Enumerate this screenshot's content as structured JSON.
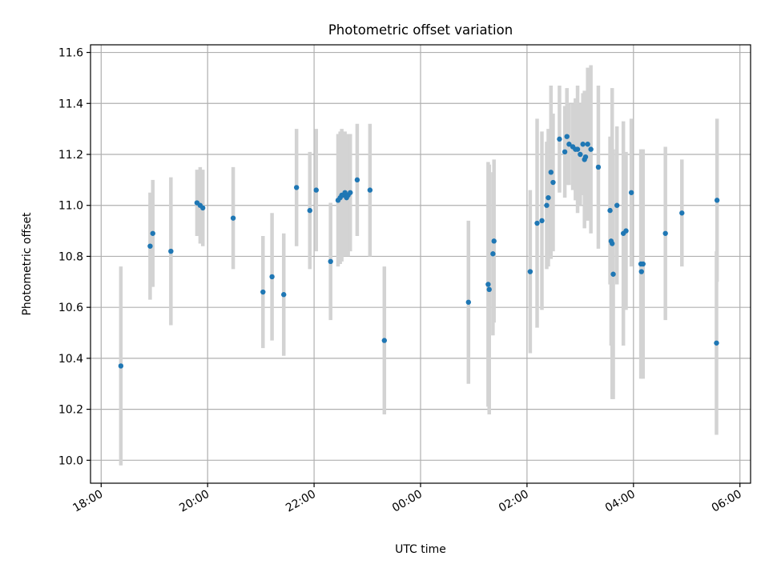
{
  "chart_data": {
    "type": "scatter",
    "title": "Photometric offset variation",
    "xlabel": "UTC time",
    "ylabel": "Photometric offset",
    "x_unit": "hours",
    "xlim": [
      17.8,
      30.2
    ],
    "ylim": [
      9.91,
      11.63
    ],
    "grid": true,
    "x_ticks": [
      {
        "value": 18,
        "label": "18:00"
      },
      {
        "value": 20,
        "label": "20:00"
      },
      {
        "value": 22,
        "label": "22:00"
      },
      {
        "value": 24,
        "label": "00:00"
      },
      {
        "value": 26,
        "label": "02:00"
      },
      {
        "value": 28,
        "label": "04:00"
      },
      {
        "value": 30,
        "label": "06:00"
      }
    ],
    "y_ticks": [
      {
        "value": 10.0,
        "label": "10.0"
      },
      {
        "value": 10.2,
        "label": "10.2"
      },
      {
        "value": 10.4,
        "label": "10.4"
      },
      {
        "value": 10.6,
        "label": "10.6"
      },
      {
        "value": 10.8,
        "label": "10.8"
      },
      {
        "value": 11.0,
        "label": "11.0"
      },
      {
        "value": 11.2,
        "label": "11.2"
      },
      {
        "value": 11.4,
        "label": "11.4"
      },
      {
        "value": 11.6,
        "label": "11.6"
      }
    ],
    "colors": {
      "points": "#1f77b4",
      "errorbars": "#d3d3d3",
      "grid": "#b0b0b0",
      "axes": "#000000"
    },
    "series": [
      {
        "x_hours": [
          18.37,
          18.92,
          18.97,
          19.31,
          19.8,
          19.86,
          19.91,
          20.48,
          21.04,
          21.21,
          21.43,
          21.67,
          21.92,
          22.04,
          22.31,
          22.45,
          22.49,
          22.52,
          22.55,
          22.58,
          22.61,
          22.64,
          22.68,
          22.81,
          23.05,
          23.32,
          24.9,
          25.27,
          25.29,
          25.36,
          25.38,
          26.06,
          26.19,
          26.28,
          26.37,
          26.4,
          26.45,
          26.49,
          26.61,
          26.71,
          26.75,
          26.79,
          26.86,
          26.91,
          26.95,
          27.0,
          27.05,
          27.08,
          27.1,
          27.14,
          27.2,
          27.34,
          27.56,
          27.58,
          27.6,
          27.62,
          27.69,
          27.81,
          27.86,
          27.96,
          28.14,
          28.15,
          28.18,
          28.6,
          28.91,
          29.56,
          29.57
        ],
        "time_labels": [],
        "y": [
          10.37,
          10.84,
          10.89,
          10.82,
          11.01,
          11.0,
          10.99,
          10.95,
          10.66,
          10.72,
          10.65,
          11.07,
          10.98,
          11.06,
          10.78,
          11.02,
          11.03,
          11.04,
          11.04,
          11.05,
          11.03,
          11.04,
          11.05,
          11.1,
          11.06,
          10.47,
          10.62,
          10.69,
          10.67,
          10.81,
          10.86,
          10.74,
          10.93,
          10.94,
          11.0,
          11.03,
          11.13,
          11.09,
          11.26,
          11.21,
          11.27,
          11.24,
          11.23,
          11.22,
          11.22,
          11.2,
          11.24,
          11.18,
          11.19,
          11.24,
          11.22,
          11.15,
          10.98,
          10.86,
          10.85,
          10.73,
          11.0,
          10.89,
          10.9,
          11.05,
          10.77,
          10.74,
          10.77,
          10.89,
          10.97,
          10.46,
          11.02
        ],
        "yerr": [
          0.39,
          0.21,
          0.21,
          0.29,
          0.13,
          0.15,
          0.15,
          0.2,
          0.22,
          0.25,
          0.24,
          0.23,
          0.23,
          0.24,
          0.23,
          0.26,
          0.26,
          0.26,
          0.24,
          0.24,
          0.23,
          0.24,
          0.23,
          0.22,
          0.26,
          0.29,
          0.32,
          0.48,
          0.49,
          0.32,
          0.32,
          0.32,
          0.41,
          0.35,
          0.25,
          0.27,
          0.34,
          0.27,
          0.21,
          0.18,
          0.19,
          0.16,
          0.17,
          0.2,
          0.25,
          0.2,
          0.2,
          0.27,
          0.24,
          0.3,
          0.33,
          0.32,
          0.29,
          0.41,
          0.61,
          0.49,
          0.31,
          0.44,
          0.31,
          0.29,
          0.45,
          0.41,
          0.45,
          0.34,
          0.21,
          0.36,
          0.32
        ]
      }
    ]
  }
}
